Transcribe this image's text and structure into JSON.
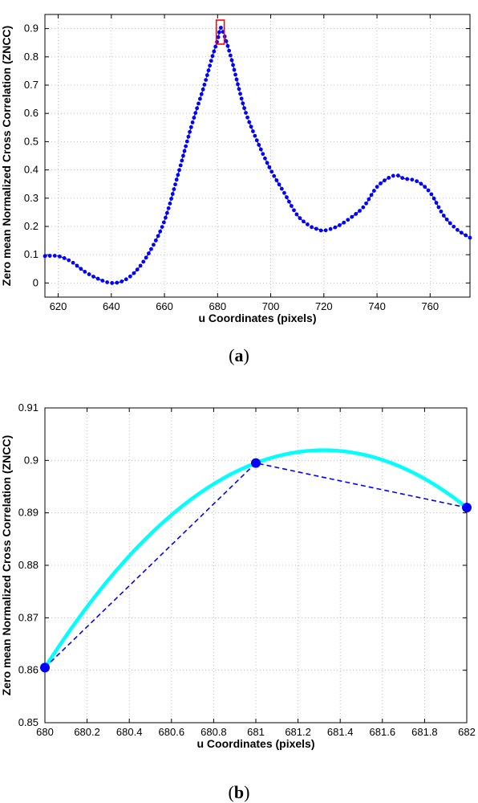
{
  "chart_data": [
    {
      "panel": "a",
      "type": "scatter",
      "xlabel": "u Coordinates (pixels)",
      "ylabel": "Zero mean Normalized Cross Correlation (ZNCC)",
      "xlim": [
        615,
        775
      ],
      "ylim": [
        -0.05,
        0.95
      ],
      "xticks": [
        620,
        640,
        660,
        680,
        700,
        720,
        740,
        760
      ],
      "yticks": [
        0,
        0.1,
        0.2,
        0.3,
        0.4,
        0.5,
        0.6,
        0.7,
        0.8,
        0.9
      ],
      "grid": true,
      "line_style": "dashed with dot markers",
      "series_color": "#0000ff",
      "highlight_color": "#ff0000",
      "highlight_box": {
        "x": [
          679.5,
          682.5
        ],
        "y": [
          0.845,
          0.93
        ]
      },
      "series": [
        {
          "x": [
            615,
            620,
            625,
            630,
            635,
            640,
            645,
            650,
            655,
            660,
            665,
            670,
            675,
            678,
            680,
            681,
            682,
            685,
            690,
            695,
            700,
            705,
            710,
            715,
            718,
            720,
            725,
            730,
            735,
            740,
            745,
            748,
            750,
            755,
            760,
            765,
            770,
            775
          ],
          "y": [
            0.095,
            0.095,
            0.075,
            0.04,
            0.015,
            0.0,
            0.01,
            0.05,
            0.12,
            0.22,
            0.38,
            0.55,
            0.7,
            0.8,
            0.86,
            0.9,
            0.89,
            0.8,
            0.62,
            0.5,
            0.4,
            0.32,
            0.24,
            0.2,
            0.19,
            0.185,
            0.2,
            0.23,
            0.27,
            0.34,
            0.375,
            0.38,
            0.37,
            0.36,
            0.32,
            0.24,
            0.19,
            0.16
          ]
        }
      ]
    },
    {
      "panel": "b",
      "type": "line",
      "xlabel": "u Coordinates (pixels)",
      "ylabel": "Zero mean Normalized Cross Correlation (ZNCC)",
      "xlim": [
        680,
        682
      ],
      "ylim": [
        0.85,
        0.91
      ],
      "xticks": [
        680,
        680.2,
        680.4,
        680.6,
        680.8,
        681,
        681.2,
        681.4,
        681.6,
        681.8,
        682
      ],
      "yticks": [
        0.85,
        0.86,
        0.87,
        0.88,
        0.89,
        0.9,
        0.91
      ],
      "grid": true,
      "points": {
        "x": [
          680,
          681,
          682
        ],
        "y": [
          0.8605,
          0.8995,
          0.891
        ],
        "color": "#0000ff",
        "line_style": "dashed"
      },
      "fit": {
        "type": "quadratic",
        "color": "#00ffff",
        "peak_x": 681.33,
        "peak_y": 0.902
      }
    }
  ],
  "labels": {
    "panel_a": "a",
    "panel_b": "b"
  }
}
